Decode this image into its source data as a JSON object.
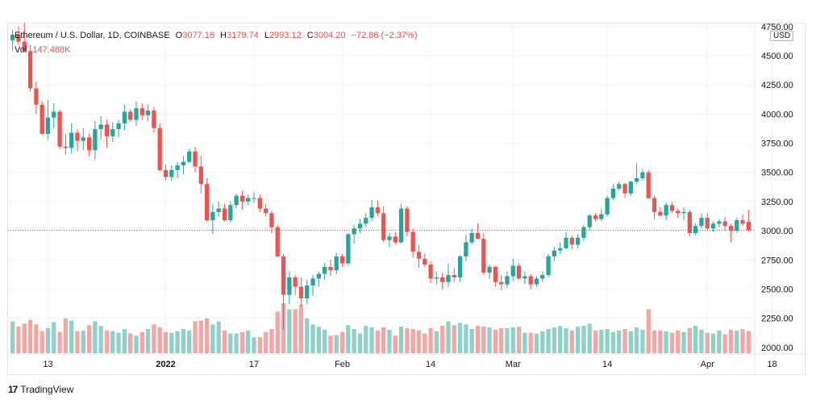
{
  "legend": {
    "symbol": "Ethereum / U.S. Dollar, 1D, COINBASE",
    "o_label": "O",
    "o": "3077.16",
    "h_label": "H",
    "h": "3179.74",
    "l_label": "L",
    "l": "2993.12",
    "c_label": "C",
    "c": "3004.20",
    "change": "−72.86 (−2.37%)",
    "vol_label": "Vol",
    "vol": "147.488K"
  },
  "currency": "USD",
  "branding": {
    "logo_mark": "17",
    "name": "TradingView"
  },
  "colors": {
    "up": "#26a69a",
    "down": "#ef5350",
    "up_vol": "#8fd1c9",
    "down_vol": "#f3a6a4",
    "grid": "#f0f3fa",
    "text": "#131722"
  },
  "chart_data": {
    "type": "candlestick",
    "title": "Ethereum / U.S. Dollar, 1D, COINBASE",
    "y_ticks": [
      "4750.00",
      "4500.00",
      "4250.00",
      "4000.00",
      "3750.00",
      "3500.00",
      "3250.00",
      "3000.00",
      "2750.00",
      "2500.00",
      "2250.00",
      "2000.00"
    ],
    "ylim": [
      1950,
      4770
    ],
    "x_ticks": [
      "13",
      "2022",
      "17",
      "Feb",
      "14",
      "Mar",
      "14",
      "Apr",
      "18"
    ],
    "current_price": 3004.2,
    "grid": true,
    "candles": [
      [
        4630,
        4720,
        4540,
        4680,
        210
      ],
      [
        4680,
        4750,
        4590,
        4620,
        175
      ],
      [
        4620,
        4780,
        4530,
        4540,
        195
      ],
      [
        4540,
        4590,
        4190,
        4220,
        220
      ],
      [
        4220,
        4280,
        4000,
        4080,
        190
      ],
      [
        4080,
        4110,
        3820,
        3830,
        145
      ],
      [
        3830,
        4120,
        3780,
        3970,
        165
      ],
      [
        3970,
        4090,
        3880,
        4020,
        205
      ],
      [
        4020,
        4040,
        3700,
        3720,
        140
      ],
      [
        3720,
        3830,
        3650,
        3710,
        230
      ],
      [
        3710,
        3920,
        3660,
        3840,
        215
      ],
      [
        3840,
        3870,
        3680,
        3770,
        145
      ],
      [
        3770,
        3880,
        3690,
        3800,
        150
      ],
      [
        3800,
        3830,
        3640,
        3690,
        185
      ],
      [
        3690,
        3940,
        3610,
        3870,
        210
      ],
      [
        3870,
        3980,
        3780,
        3910,
        180
      ],
      [
        3910,
        3950,
        3710,
        3810,
        150
      ],
      [
        3810,
        3930,
        3760,
        3870,
        145
      ],
      [
        3870,
        3950,
        3800,
        3920,
        135
      ],
      [
        3920,
        4080,
        3860,
        4020,
        160
      ],
      [
        4020,
        4040,
        3930,
        3950,
        130
      ],
      [
        3950,
        4110,
        3900,
        4050,
        115
      ],
      [
        4050,
        4090,
        3950,
        3990,
        140
      ],
      [
        3990,
        4080,
        3940,
        4030,
        160
      ],
      [
        4030,
        4060,
        3840,
        3880,
        190
      ],
      [
        3880,
        3920,
        3510,
        3520,
        170
      ],
      [
        3520,
        3570,
        3430,
        3460,
        140
      ],
      [
        3460,
        3560,
        3430,
        3520,
        135
      ],
      [
        3520,
        3590,
        3450,
        3560,
        145
      ],
      [
        3560,
        3640,
        3480,
        3590,
        160
      ],
      [
        3590,
        3700,
        3580,
        3680,
        150
      ],
      [
        3680,
        3720,
        3500,
        3550,
        210
      ],
      [
        3550,
        3640,
        3320,
        3400,
        215
      ],
      [
        3400,
        3450,
        3080,
        3090,
        230
      ],
      [
        3090,
        3230,
        2970,
        3160,
        190
      ],
      [
        3160,
        3250,
        3120,
        3190,
        210
      ],
      [
        3190,
        3230,
        3080,
        3090,
        150
      ],
      [
        3090,
        3250,
        3070,
        3220,
        130
      ],
      [
        3220,
        3320,
        3190,
        3300,
        130
      ],
      [
        3300,
        3340,
        3180,
        3250,
        140
      ],
      [
        3250,
        3310,
        3220,
        3280,
        150
      ],
      [
        3280,
        3330,
        3240,
        3280,
        105
      ],
      [
        3280,
        3310,
        3160,
        3190,
        105
      ],
      [
        3190,
        3230,
        3120,
        3150,
        140
      ],
      [
        3150,
        3170,
        2980,
        3030,
        160
      ],
      [
        3030,
        3050,
        2770,
        2780,
        275
      ],
      [
        2780,
        2800,
        2150,
        2450,
        330
      ],
      [
        2450,
        2650,
        2370,
        2600,
        290
      ],
      [
        2600,
        2620,
        2450,
        2520,
        290
      ],
      [
        2520,
        2600,
        2350,
        2420,
        320
      ],
      [
        2420,
        2580,
        2370,
        2530,
        230
      ],
      [
        2530,
        2620,
        2440,
        2590,
        190
      ],
      [
        2590,
        2650,
        2520,
        2630,
        175
      ],
      [
        2630,
        2720,
        2580,
        2690,
        155
      ],
      [
        2690,
        2750,
        2610,
        2660,
        115
      ],
      [
        2660,
        2810,
        2630,
        2780,
        120
      ],
      [
        2780,
        2800,
        2690,
        2720,
        140
      ],
      [
        2720,
        2980,
        2700,
        2970,
        185
      ],
      [
        2970,
        3050,
        2890,
        3020,
        160
      ],
      [
        3020,
        3100,
        2980,
        3060,
        130
      ],
      [
        3060,
        3150,
        3030,
        3110,
        180
      ],
      [
        3110,
        3260,
        3080,
        3200,
        170
      ],
      [
        3200,
        3260,
        3120,
        3150,
        150
      ],
      [
        3150,
        3210,
        2900,
        2920,
        170
      ],
      [
        2920,
        2980,
        2860,
        2950,
        155
      ],
      [
        2950,
        2990,
        2880,
        2900,
        115
      ],
      [
        2900,
        3230,
        2890,
        3190,
        175
      ],
      [
        3190,
        3210,
        2950,
        2990,
        165
      ],
      [
        2990,
        3020,
        2770,
        2820,
        160
      ],
      [
        2820,
        2880,
        2680,
        2760,
        150
      ],
      [
        2760,
        2800,
        2690,
        2710,
        130
      ],
      [
        2710,
        2740,
        2550,
        2590,
        165
      ],
      [
        2590,
        2650,
        2540,
        2600,
        145
      ],
      [
        2600,
        2640,
        2500,
        2560,
        180
      ],
      [
        2560,
        2720,
        2520,
        2620,
        210
      ],
      [
        2620,
        2680,
        2560,
        2600,
        185
      ],
      [
        2600,
        2790,
        2560,
        2780,
        200
      ],
      [
        2780,
        2960,
        2740,
        2900,
        190
      ],
      [
        2900,
        3020,
        2880,
        2980,
        160
      ],
      [
        2980,
        3060,
        2940,
        2930,
        180
      ],
      [
        2930,
        2980,
        2620,
        2640,
        175
      ],
      [
        2640,
        2710,
        2590,
        2690,
        170
      ],
      [
        2690,
        2700,
        2520,
        2560,
        155
      ],
      [
        2560,
        2620,
        2490,
        2540,
        165
      ],
      [
        2540,
        2650,
        2510,
        2610,
        165
      ],
      [
        2610,
        2760,
        2570,
        2700,
        170
      ],
      [
        2700,
        2720,
        2580,
        2590,
        175
      ],
      [
        2590,
        2650,
        2540,
        2610,
        135
      ],
      [
        2610,
        2630,
        2500,
        2540,
        135
      ],
      [
        2540,
        2610,
        2520,
        2590,
        130
      ],
      [
        2590,
        2650,
        2560,
        2620,
        145
      ],
      [
        2620,
        2800,
        2600,
        2780,
        160
      ],
      [
        2780,
        2860,
        2740,
        2830,
        170
      ],
      [
        2830,
        2900,
        2800,
        2850,
        180
      ],
      [
        2850,
        2990,
        2840,
        2940,
        165
      ],
      [
        2940,
        2960,
        2840,
        2880,
        150
      ],
      [
        2880,
        2970,
        2850,
        2940,
        175
      ],
      [
        2940,
        3050,
        2910,
        3030,
        180
      ],
      [
        3030,
        3140,
        3000,
        3130,
        195
      ],
      [
        3130,
        3150,
        3080,
        3100,
        150
      ],
      [
        3100,
        3190,
        3080,
        3140,
        155
      ],
      [
        3140,
        3300,
        3120,
        3280,
        160
      ],
      [
        3280,
        3400,
        3260,
        3360,
        140
      ],
      [
        3360,
        3420,
        3340,
        3400,
        150
      ],
      [
        3400,
        3410,
        3280,
        3320,
        160
      ],
      [
        3320,
        3430,
        3300,
        3420,
        145
      ],
      [
        3420,
        3580,
        3400,
        3450,
        170
      ],
      [
        3450,
        3530,
        3430,
        3500,
        155
      ],
      [
        3500,
        3520,
        3270,
        3280,
        290
      ],
      [
        3280,
        3300,
        3100,
        3160,
        150
      ],
      [
        3160,
        3200,
        3120,
        3130,
        150
      ],
      [
        3130,
        3240,
        3090,
        3220,
        145
      ],
      [
        3220,
        3250,
        3150,
        3170,
        135
      ],
      [
        3170,
        3190,
        3110,
        3150,
        150
      ],
      [
        3150,
        3200,
        3090,
        3160,
        140
      ],
      [
        3160,
        3180,
        2950,
        2980,
        165
      ],
      [
        2980,
        3060,
        2960,
        3040,
        180
      ],
      [
        3040,
        3150,
        3020,
        3110,
        155
      ],
      [
        3110,
        3150,
        3000,
        3020,
        135
      ],
      [
        3020,
        3080,
        2990,
        3060,
        130
      ],
      [
        3060,
        3100,
        3030,
        3080,
        150
      ],
      [
        3080,
        3120,
        3000,
        3040,
        125
      ],
      [
        3040,
        3060,
        2900,
        3000,
        155
      ],
      [
        3000,
        3110,
        2980,
        3090,
        150
      ],
      [
        3090,
        3140,
        3040,
        3060,
        160
      ],
      [
        3077.16,
        3179.74,
        2993.12,
        3004.2,
        147
      ]
    ]
  }
}
